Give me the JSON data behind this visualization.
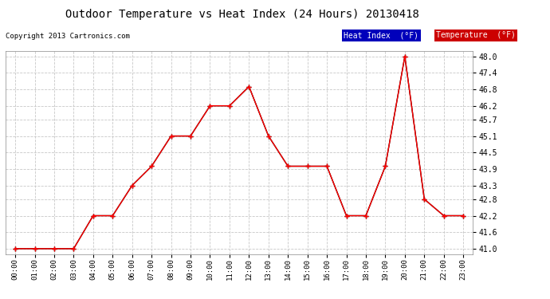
{
  "title": "Outdoor Temperature vs Heat Index (24 Hours) 20130418",
  "copyright": "Copyright 2013 Cartronics.com",
  "x_labels": [
    "00:00",
    "01:00",
    "02:00",
    "03:00",
    "04:00",
    "05:00",
    "06:00",
    "07:00",
    "08:00",
    "09:00",
    "10:00",
    "11:00",
    "12:00",
    "13:00",
    "14:00",
    "15:00",
    "16:00",
    "17:00",
    "18:00",
    "19:00",
    "20:00",
    "21:00",
    "22:00",
    "23:00"
  ],
  "temperature": [
    41.0,
    41.0,
    41.0,
    41.0,
    42.2,
    42.2,
    43.3,
    44.0,
    45.1,
    45.1,
    46.2,
    46.2,
    46.9,
    45.1,
    44.0,
    44.0,
    44.0,
    42.2,
    42.2,
    44.0,
    48.0,
    42.8,
    42.2,
    42.2
  ],
  "heat_index": [
    41.0,
    41.0,
    41.0,
    41.0,
    42.2,
    42.2,
    43.3,
    44.0,
    45.1,
    45.1,
    46.2,
    46.2,
    46.9,
    45.1,
    44.0,
    44.0,
    44.0,
    42.2,
    42.2,
    44.0,
    48.0,
    42.8,
    42.2,
    42.2
  ],
  "ylim_min": 41.0,
  "ylim_max": 48.0,
  "yticks": [
    41.0,
    41.6,
    42.2,
    42.8,
    43.3,
    43.9,
    44.5,
    45.1,
    45.7,
    46.2,
    46.8,
    47.4,
    48.0
  ],
  "temp_color": "#ff0000",
  "heat_index_color": "#000000",
  "bg_color": "#ffffff",
  "grid_color": "#c8c8c8",
  "legend_heat_bg": "#0000bb",
  "legend_temp_bg": "#cc0000",
  "legend_heat_text": "Heat Index  (°F)",
  "legend_temp_text": "Temperature  (°F)",
  "fig_width": 6.9,
  "fig_height": 3.75,
  "dpi": 100
}
